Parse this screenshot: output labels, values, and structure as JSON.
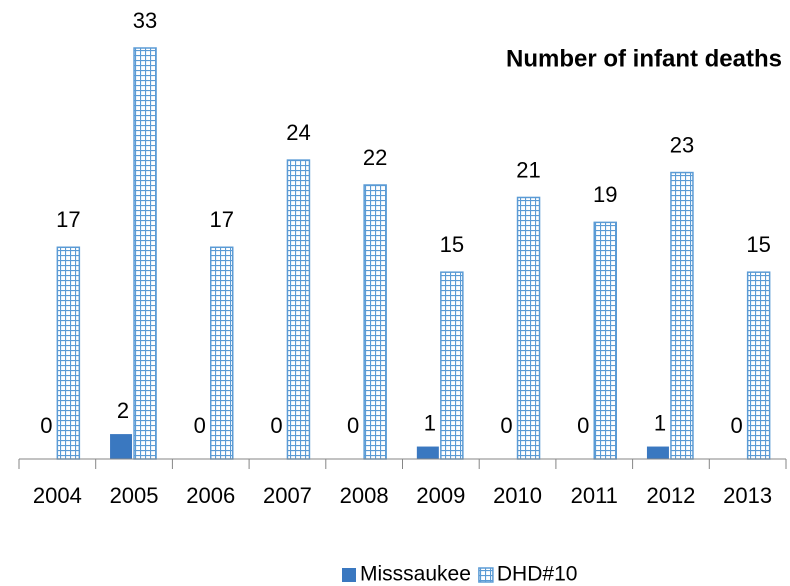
{
  "chart_data": {
    "type": "bar",
    "title": "Number of infant deaths",
    "categories": [
      "2004",
      "2005",
      "2006",
      "2007",
      "2008",
      "2009",
      "2010",
      "2011",
      "2012",
      "2013"
    ],
    "series": [
      {
        "name": "Misssaukee",
        "color": "#3a78c0",
        "values": [
          0,
          2,
          0,
          0,
          0,
          1,
          0,
          0,
          1,
          0
        ]
      },
      {
        "name": "DHD#10",
        "color": "#5b9bd5",
        "values": [
          17,
          33,
          17,
          24,
          22,
          15,
          21,
          19,
          23,
          15
        ]
      }
    ],
    "ylim": [
      0,
      33
    ],
    "legend": "bottom"
  }
}
